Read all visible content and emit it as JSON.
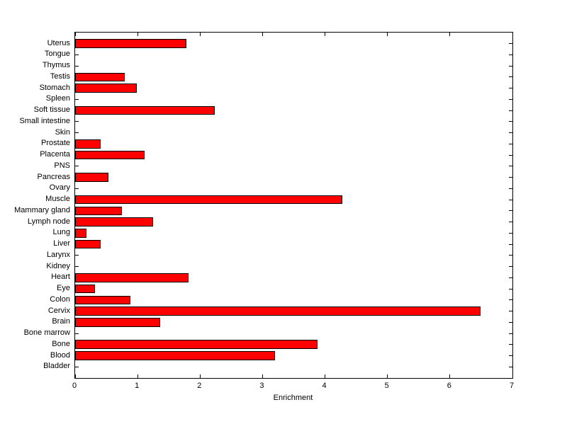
{
  "figure": {
    "background_color": "#ffffff",
    "axes_color": "#000000",
    "text_color": "#000000"
  },
  "chart_data": {
    "type": "bar",
    "orientation": "horizontal",
    "title": "",
    "xlabel": "Enrichment",
    "ylabel": "",
    "xlim": [
      0,
      7
    ],
    "x_ticks": [
      "0",
      "1",
      "2",
      "3",
      "4",
      "5",
      "6",
      "7"
    ],
    "grid": false,
    "legend": "none",
    "bar_color": "#ff0000",
    "bar_edge_color": "#000000",
    "categories_top_to_bottom": [
      "Uterus",
      "Tongue",
      "Thymus",
      "Testis",
      "Stomach",
      "Spleen",
      "Soft tissue",
      "Small intestine",
      "Skin",
      "Prostate",
      "Placenta",
      "PNS",
      "Pancreas",
      "Ovary",
      "Muscle",
      "Mammary gland",
      "Lymph node",
      "Lung",
      "Liver",
      "Larynx",
      "Kidney",
      "Heart",
      "Eye",
      "Colon",
      "Cervix",
      "Brain",
      "Bone marrow",
      "Bone",
      "Blood",
      "Bladder"
    ],
    "values": [
      1.78,
      0,
      0,
      0.79,
      0.99,
      0,
      2.24,
      0,
      0,
      0.41,
      1.11,
      0,
      0.53,
      0,
      4.28,
      0.75,
      1.25,
      0.18,
      0.41,
      0,
      0,
      1.81,
      0.32,
      0.88,
      6.49,
      1.36,
      0,
      3.88,
      3.2,
      0
    ]
  }
}
